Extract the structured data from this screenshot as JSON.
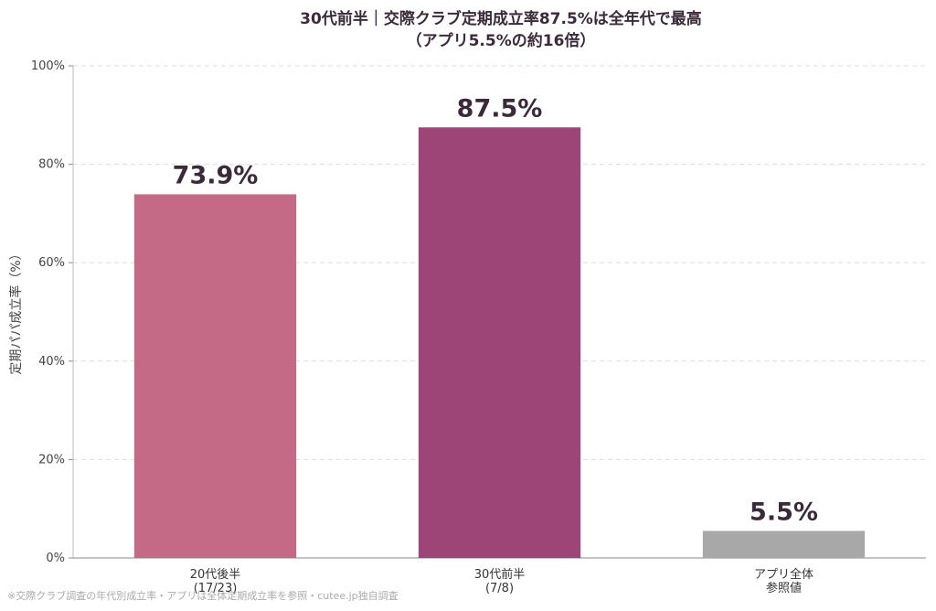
{
  "chart_data": {
    "type": "bar",
    "title_lines": [
      "30代前半｜交際クラブ定期成立率87.5%は全年代で最高",
      "（アプリ5.5%の約16倍）"
    ],
    "ylabel": "定期パパ成立率（%）",
    "xlabel": "",
    "ylim": [
      0,
      100
    ],
    "yticks": [
      0,
      20,
      40,
      60,
      80,
      100
    ],
    "ytick_labels": [
      "0%",
      "20%",
      "40%",
      "60%",
      "80%",
      "100%"
    ],
    "grid": true,
    "categories": [
      {
        "label_lines": [
          "20代後半",
          "(17/23)"
        ]
      },
      {
        "label_lines": [
          "30代前半",
          "(7/8)"
        ]
      },
      {
        "label_lines": [
          "アプリ全体",
          "参照値"
        ]
      }
    ],
    "values": [
      73.9,
      87.5,
      5.5
    ],
    "value_labels": [
      "73.9%",
      "87.5%",
      "5.5%"
    ],
    "colors": [
      "#c56a86",
      "#9e4577",
      "#a8a8a8"
    ],
    "footnote": "※交際クラブ調査の年代別成立率・アプリは全体定期成立率を参照・cutee.jp独自調査"
  }
}
